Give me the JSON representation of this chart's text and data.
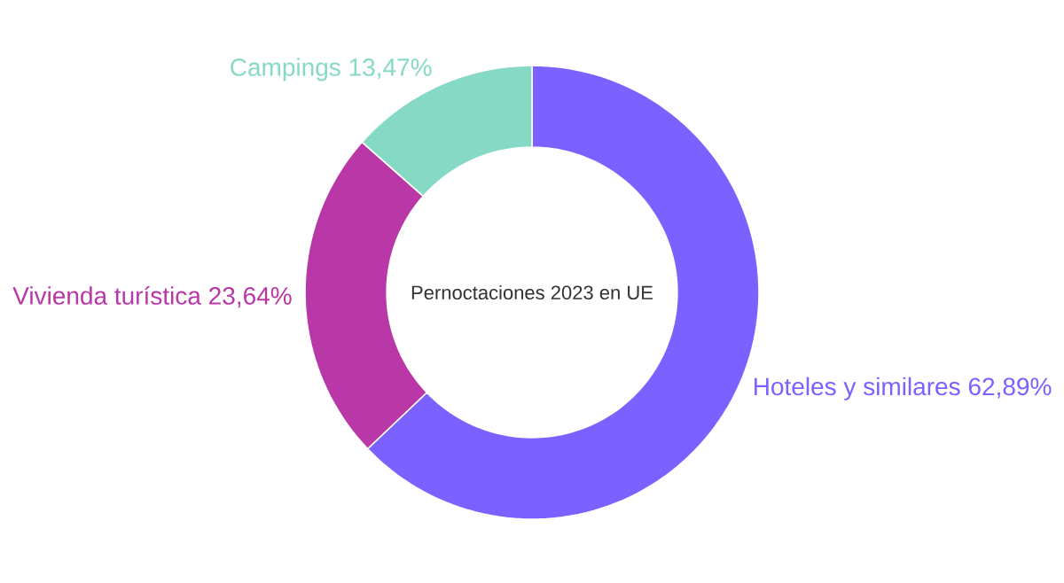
{
  "chart_data": {
    "type": "donut",
    "title": "Pernoctaciones 2023 en UE",
    "categories": [
      "Hoteles y similares",
      "Vivienda turística",
      "Campings"
    ],
    "values": [
      62.89,
      23.64,
      13.47
    ],
    "value_labels": [
      "62,89%",
      "23,64%",
      "13,47%"
    ],
    "colors": [
      "#7b61ff",
      "#b937a6",
      "#86d9c5"
    ]
  }
}
